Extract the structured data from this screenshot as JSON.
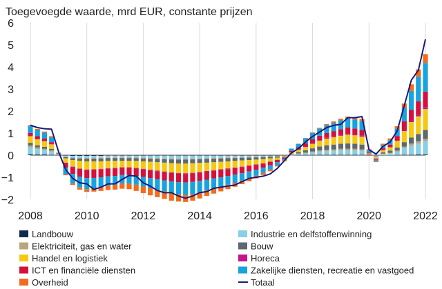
{
  "chart_data": {
    "type": "bar",
    "title": "Toegevoegde waarde, mrd EUR, constante prijzen",
    "xlabel": "",
    "ylabel": "",
    "ylim": [
      -2,
      6
    ],
    "xlim": [
      2008,
      2022
    ],
    "yticks": [
      -2,
      -1,
      0,
      1,
      2,
      3,
      4,
      5,
      6
    ],
    "ytick_labels": [
      "−2",
      "−1",
      "0",
      "1",
      "2",
      "3",
      "4",
      "5",
      "6"
    ],
    "xticks": [
      2008,
      2010,
      2012,
      2014,
      2016,
      2018,
      2020,
      2022
    ],
    "xtick_labels": [
      "2008",
      "2010",
      "2012",
      "2014",
      "2016",
      "2018",
      "2020",
      "2022"
    ],
    "grid": "vertical",
    "legend_position": "bottom",
    "x": [
      2008.0,
      2008.25,
      2008.5,
      2008.75,
      2009.0,
      2009.25,
      2009.5,
      2009.75,
      2010.0,
      2010.25,
      2010.5,
      2010.75,
      2011.0,
      2011.25,
      2011.5,
      2011.75,
      2012.0,
      2012.25,
      2012.5,
      2012.75,
      2013.0,
      2013.25,
      2013.5,
      2013.75,
      2014.0,
      2014.25,
      2014.5,
      2014.75,
      2015.0,
      2015.25,
      2015.5,
      2015.75,
      2016.0,
      2016.25,
      2016.5,
      2016.75,
      2017.0,
      2017.25,
      2017.5,
      2017.75,
      2018.0,
      2018.25,
      2018.5,
      2018.75,
      2019.0,
      2019.25,
      2019.5,
      2019.75,
      2020.0,
      2020.25,
      2020.5,
      2020.75,
      2021.0,
      2021.25,
      2021.5,
      2021.75,
      2022.0
    ],
    "series": [
      {
        "name": "Landbouw",
        "color": "#0f2a4e",
        "values": [
          0.04,
          0.03,
          0.03,
          0.02,
          0,
          -0.02,
          -0.03,
          -0.03,
          -0.03,
          -0.03,
          -0.03,
          -0.02,
          -0.02,
          -0.02,
          -0.02,
          -0.02,
          -0.02,
          -0.02,
          -0.02,
          -0.02,
          -0.02,
          -0.02,
          -0.02,
          -0.02,
          -0.02,
          -0.02,
          -0.02,
          -0.02,
          -0.02,
          -0.02,
          -0.02,
          -0.02,
          -0.02,
          -0.02,
          -0.02,
          -0.02,
          -0.01,
          0,
          0.01,
          0.01,
          0.01,
          0.02,
          0.02,
          0.02,
          0.02,
          0.02,
          0.02,
          0.02,
          0,
          -0.01,
          0,
          0,
          0.01,
          0.02,
          0.02,
          0.03,
          0.03
        ]
      },
      {
        "name": "Industrie en delfstoffenwinning",
        "color": "#89cfe6",
        "values": [
          0.32,
          0.25,
          0.2,
          0.15,
          0.02,
          -0.05,
          -0.08,
          -0.09,
          -0.1,
          -0.1,
          -0.09,
          -0.08,
          -0.08,
          -0.08,
          -0.08,
          -0.09,
          -0.1,
          -0.11,
          -0.12,
          -0.13,
          -0.14,
          -0.15,
          -0.15,
          -0.14,
          -0.13,
          -0.12,
          -0.11,
          -0.1,
          -0.09,
          -0.08,
          -0.07,
          -0.06,
          -0.05,
          -0.04,
          -0.03,
          -0.02,
          -0.01,
          0.03,
          0.05,
          0.08,
          0.12,
          0.15,
          0.17,
          0.18,
          0.2,
          0.2,
          0.2,
          0.18,
          0,
          -0.05,
          0.05,
          0.08,
          0.15,
          0.3,
          0.42,
          0.5,
          0.6
        ]
      },
      {
        "name": "Elektriciteit, gas en water",
        "color": "#b8a67c",
        "values": [
          0.08,
          0.07,
          0.06,
          0.05,
          0.01,
          -0.02,
          -0.03,
          -0.03,
          -0.03,
          -0.03,
          -0.03,
          -0.03,
          -0.03,
          -0.03,
          -0.03,
          -0.03,
          -0.03,
          -0.03,
          -0.03,
          -0.03,
          -0.03,
          -0.03,
          -0.03,
          -0.03,
          -0.03,
          -0.03,
          -0.03,
          -0.03,
          -0.03,
          -0.03,
          -0.03,
          -0.03,
          -0.03,
          -0.03,
          -0.02,
          -0.02,
          -0.01,
          0.01,
          0.02,
          0.03,
          0.04,
          0.05,
          0.06,
          0.06,
          0.07,
          0.07,
          0.07,
          0.06,
          0,
          -0.02,
          0.02,
          0.03,
          0.05,
          0.07,
          0.09,
          0.1,
          0.11
        ]
      },
      {
        "name": "Bouw",
        "color": "#5e6870",
        "values": [
          0.12,
          0.1,
          0.09,
          0.07,
          0.01,
          -0.05,
          -0.08,
          -0.1,
          -0.12,
          -0.12,
          -0.13,
          -0.13,
          -0.13,
          -0.12,
          -0.12,
          -0.12,
          -0.13,
          -0.14,
          -0.15,
          -0.16,
          -0.17,
          -0.18,
          -0.18,
          -0.18,
          -0.17,
          -0.17,
          -0.16,
          -0.15,
          -0.14,
          -0.13,
          -0.12,
          -0.11,
          -0.1,
          -0.09,
          -0.07,
          -0.05,
          -0.02,
          0.03,
          0.06,
          0.1,
          0.14,
          0.17,
          0.2,
          0.22,
          0.23,
          0.24,
          0.23,
          0.22,
          0.03,
          -0.02,
          0.06,
          0.1,
          0.14,
          0.2,
          0.27,
          0.33,
          0.4
        ]
      },
      {
        "name": "Handel en logistiek",
        "color": "#f6c811",
        "values": [
          0.3,
          0.27,
          0.25,
          0.2,
          0.02,
          -0.2,
          -0.3,
          -0.36,
          -0.37,
          -0.36,
          -0.34,
          -0.33,
          -0.32,
          -0.3,
          -0.3,
          -0.32,
          -0.34,
          -0.36,
          -0.38,
          -0.4,
          -0.42,
          -0.43,
          -0.44,
          -0.43,
          -0.41,
          -0.38,
          -0.36,
          -0.34,
          -0.32,
          -0.3,
          -0.28,
          -0.25,
          -0.22,
          -0.19,
          -0.15,
          -0.1,
          -0.05,
          0.06,
          0.1,
          0.15,
          0.2,
          0.26,
          0.3,
          0.33,
          0.36,
          0.4,
          0.38,
          0.36,
          0.05,
          -0.05,
          0.1,
          0.15,
          0.3,
          0.5,
          0.7,
          0.8,
          0.95
        ]
      },
      {
        "name": "Horeca",
        "color": "#c4168c",
        "values": [
          0.03,
          0.03,
          0.02,
          0.02,
          0,
          -0.02,
          -0.03,
          -0.03,
          -0.03,
          -0.03,
          -0.03,
          -0.03,
          -0.03,
          -0.03,
          -0.03,
          -0.03,
          -0.03,
          -0.03,
          -0.03,
          -0.03,
          -0.03,
          -0.03,
          -0.03,
          -0.03,
          -0.03,
          -0.03,
          -0.03,
          -0.03,
          -0.03,
          -0.03,
          -0.03,
          -0.03,
          -0.03,
          -0.02,
          -0.02,
          -0.01,
          -0.01,
          0.01,
          0.02,
          0.02,
          0.03,
          0.03,
          0.04,
          0.04,
          0.04,
          0.04,
          0.04,
          0.04,
          -0.02,
          -0.03,
          0,
          0,
          0.02,
          0.05,
          0.06,
          0.08,
          0.09
        ]
      },
      {
        "name": "ICT en financiële diensten",
        "color": "#d6103c",
        "values": [
          0.12,
          0.11,
          0.1,
          0.08,
          0.01,
          -0.2,
          -0.3,
          -0.34,
          -0.36,
          -0.36,
          -0.35,
          -0.34,
          -0.33,
          -0.32,
          -0.32,
          -0.33,
          -0.34,
          -0.35,
          -0.36,
          -0.37,
          -0.38,
          -0.38,
          -0.39,
          -0.38,
          -0.37,
          -0.36,
          -0.34,
          -0.33,
          -0.31,
          -0.29,
          -0.27,
          -0.24,
          -0.21,
          -0.18,
          -0.15,
          -0.1,
          -0.05,
          0.06,
          0.1,
          0.15,
          0.18,
          0.2,
          0.22,
          0.24,
          0.26,
          0.28,
          0.27,
          0.26,
          0.03,
          -0.03,
          0.08,
          0.12,
          0.2,
          0.4,
          0.5,
          0.6,
          0.7
        ]
      },
      {
        "name": "Zakelijke diensten, recreatie en vastgoed",
        "color": "#16a3e0",
        "values": [
          0.3,
          0.28,
          0.27,
          0.22,
          0.03,
          -0.3,
          -0.42,
          -0.48,
          -0.5,
          -0.48,
          -0.45,
          -0.42,
          -0.4,
          -0.38,
          -0.38,
          -0.4,
          -0.43,
          -0.46,
          -0.48,
          -0.5,
          -0.53,
          -0.55,
          -0.56,
          -0.55,
          -0.52,
          -0.48,
          -0.45,
          -0.42,
          -0.4,
          -0.37,
          -0.33,
          -0.3,
          -0.27,
          -0.23,
          -0.19,
          -0.13,
          -0.07,
          0.1,
          0.15,
          0.22,
          0.28,
          0.32,
          0.35,
          0.38,
          0.4,
          0.42,
          0.41,
          0.4,
          0.1,
          -0.05,
          0.15,
          0.2,
          0.32,
          0.6,
          0.85,
          1.1,
          1.3
        ]
      },
      {
        "name": "Overheid",
        "color": "#f36b1c",
        "values": [
          0.05,
          0.05,
          0.05,
          0.05,
          0.02,
          -0.05,
          -0.08,
          -0.1,
          -0.12,
          -0.14,
          -0.17,
          -0.2,
          -0.22,
          -0.24,
          -0.26,
          -0.28,
          -0.3,
          -0.32,
          -0.33,
          -0.34,
          -0.34,
          -0.33,
          -0.32,
          -0.3,
          -0.28,
          -0.26,
          -0.24,
          -0.22,
          -0.2,
          -0.18,
          -0.16,
          -0.14,
          -0.12,
          -0.1,
          -0.08,
          -0.06,
          -0.04,
          -0.01,
          0.01,
          0.02,
          0.03,
          0.04,
          0.05,
          0.06,
          0.07,
          0.08,
          0.09,
          0.1,
          0.06,
          -0.05,
          0.06,
          0.08,
          0.12,
          0.2,
          0.3,
          0.35,
          0.4
        ]
      }
    ],
    "line": {
      "name": "Totaal",
      "color": "#1a1a7a",
      "values": [
        1.36,
        1.25,
        1.2,
        1.18,
        0.15,
        -0.65,
        -1.05,
        -1.25,
        -1.3,
        -1.55,
        -1.45,
        -1.3,
        -1.3,
        -1.1,
        -0.92,
        -0.95,
        -1.25,
        -1.4,
        -1.6,
        -1.7,
        -1.7,
        -1.85,
        -1.95,
        -1.85,
        -1.7,
        -1.65,
        -1.5,
        -1.45,
        -1.4,
        -1.35,
        -1.2,
        -1.05,
        -1.0,
        -0.95,
        -0.85,
        -0.6,
        -0.25,
        0.1,
        0.3,
        0.6,
        0.85,
        1.05,
        1.25,
        1.35,
        1.4,
        1.7,
        1.7,
        1.75,
        0.25,
        0.05,
        0.4,
        0.6,
        1.1,
        2.25,
        3.4,
        3.85,
        5.25
      ]
    }
  }
}
